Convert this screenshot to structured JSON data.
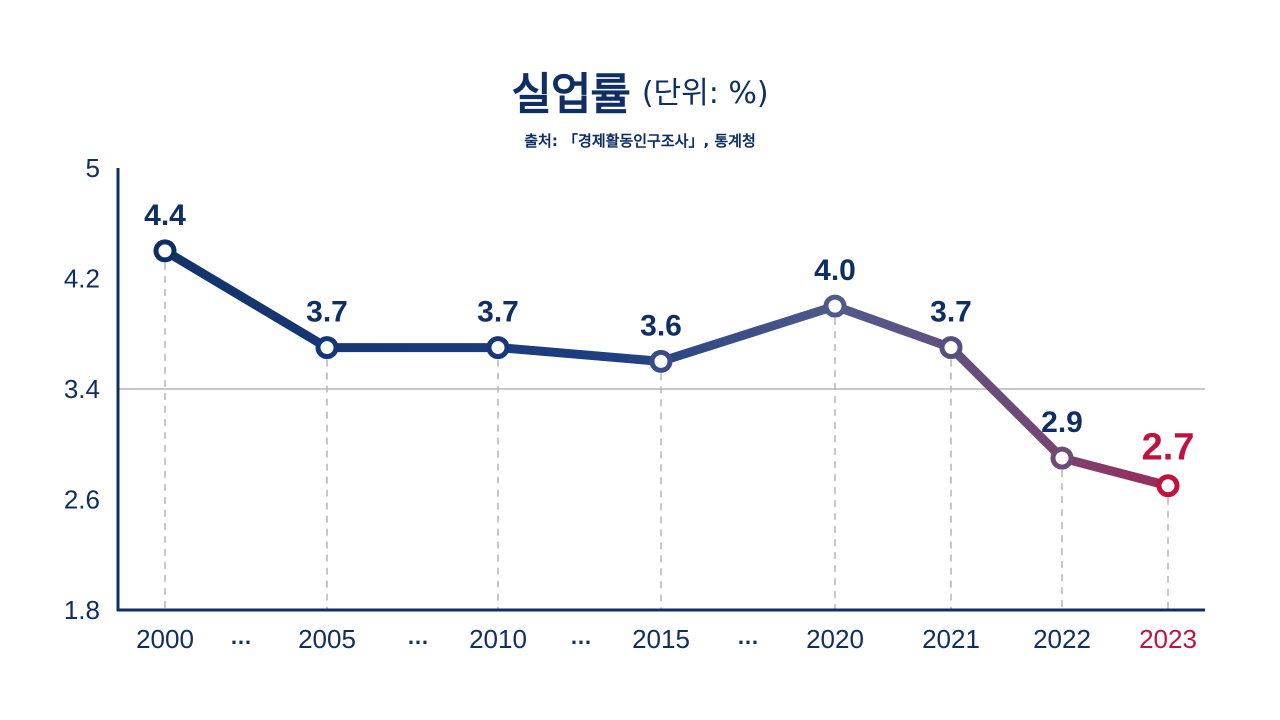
{
  "title": {
    "main": "실업률",
    "unit": "(단위: %)",
    "source": "출처: 「경제활동인구조사」, 통계청"
  },
  "colors": {
    "primary": "#0f2e63",
    "highlight": "#c0123f",
    "axis": "#0f2e63",
    "grid": "#b5b5b5"
  },
  "chart_data": {
    "type": "line",
    "title": "실업률",
    "xlabel": "",
    "ylabel": "",
    "categories": [
      "2000",
      "2005",
      "2010",
      "2015",
      "2020",
      "2021",
      "2022",
      "2023"
    ],
    "values": [
      4.4,
      3.7,
      3.7,
      3.6,
      4.0,
      3.7,
      2.9,
      2.7
    ],
    "value_labels": [
      "4.4",
      "3.7",
      "3.7",
      "3.6",
      "4.0",
      "3.7",
      "2.9",
      "2.7"
    ],
    "gap_markers": [
      "…",
      "…",
      "…",
      "…"
    ],
    "ylim": [
      1.8,
      5
    ],
    "yticks": [
      "5",
      "4.2",
      "3.4",
      "2.6",
      "1.8"
    ],
    "highlight_category": "2023",
    "grid": "horizontal line at 3.4, dashed vertical guides",
    "legend": "none"
  }
}
